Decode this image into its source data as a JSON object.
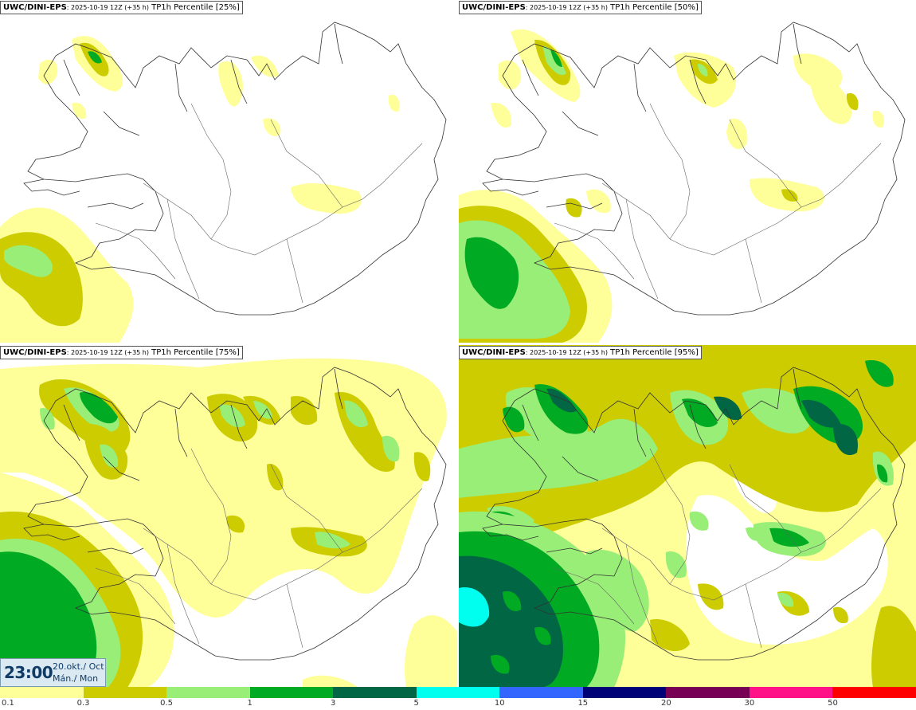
{
  "panels": [
    {
      "model": "UWC/DINI-EPS",
      "run": ": 2025-10-19 12Z (+35 h)",
      "desc": " TP1h Percentile [25%]"
    },
    {
      "model": "UWC/DINI-EPS",
      "run": ": 2025-10-19 12Z (+35 h)",
      "desc": " TP1h Percentile [50%]"
    },
    {
      "model": "UWC/DINI-EPS",
      "run": ": 2025-10-19 12Z (+35 h)",
      "desc": " TP1h Percentile [75%]"
    },
    {
      "model": "UWC/DINI-EPS",
      "run": ": 2025-10-19 12Z (+35 h)",
      "desc": " TP1h Percentile [95%]"
    }
  ],
  "valid": {
    "time": "23:00",
    "date_line1": "20.okt./ Oct",
    "date_line2": "Mán./ Mon"
  },
  "legend": {
    "colors": [
      "#ffff99",
      "#cccc00",
      "#99ee77",
      "#00aa22",
      "#006644",
      "#00ffee",
      "#3366ff",
      "#000077",
      "#770055",
      "#ff1188",
      "#ff0000"
    ],
    "labels": [
      "0.1",
      "0.3",
      "0.5",
      "1",
      "3",
      "5",
      "10",
      "15",
      "20",
      "30",
      "50"
    ]
  },
  "precip_colors": {
    "light": "#ffff99",
    "olive": "#cccc00",
    "lightgreen": "#99ee77",
    "green": "#00aa22",
    "darkgreen": "#006644",
    "cyan": "#00ffee"
  }
}
